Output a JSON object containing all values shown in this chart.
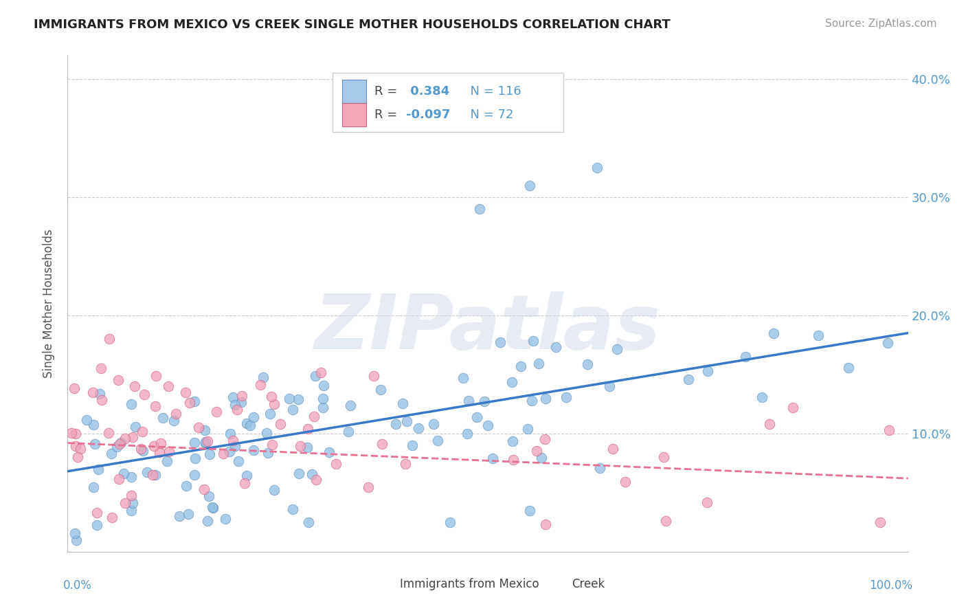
{
  "title": "IMMIGRANTS FROM MEXICO VS CREEK SINGLE MOTHER HOUSEHOLDS CORRELATION CHART",
  "source": "Source: ZipAtlas.com",
  "ylabel": "Single Mother Households",
  "legend1_color": "#a8c8e8",
  "legend2_color": "#f4a8b8",
  "line1_color": "#3a78c9",
  "line2_color": "#e87090",
  "watermark": "ZIPatlas",
  "background_color": "#ffffff",
  "tick_color": "#5599cc",
  "scatter1_color": "#90bde0",
  "scatter2_color": "#f0a0b8",
  "scatter1_edge": "#6090c0",
  "scatter2_edge": "#d06080",
  "ytick_positions": [
    0.1,
    0.2,
    0.3,
    0.4
  ],
  "ytick_labels": [
    "10.0%",
    "20.0%",
    "30.0%",
    "40.0%"
  ],
  "xlim": [
    0,
    100
  ],
  "ylim": [
    0,
    0.42
  ],
  "blue_line_x0": 0,
  "blue_line_y0": 0.068,
  "blue_line_x1": 100,
  "blue_line_y1": 0.185,
  "pink_line_x0": 0,
  "pink_line_y0": 0.092,
  "pink_line_x1": 100,
  "pink_line_y1": 0.062,
  "legend_R1": "0.384",
  "legend_N1": "116",
  "legend_R2": "-0.097",
  "legend_N2": "72"
}
